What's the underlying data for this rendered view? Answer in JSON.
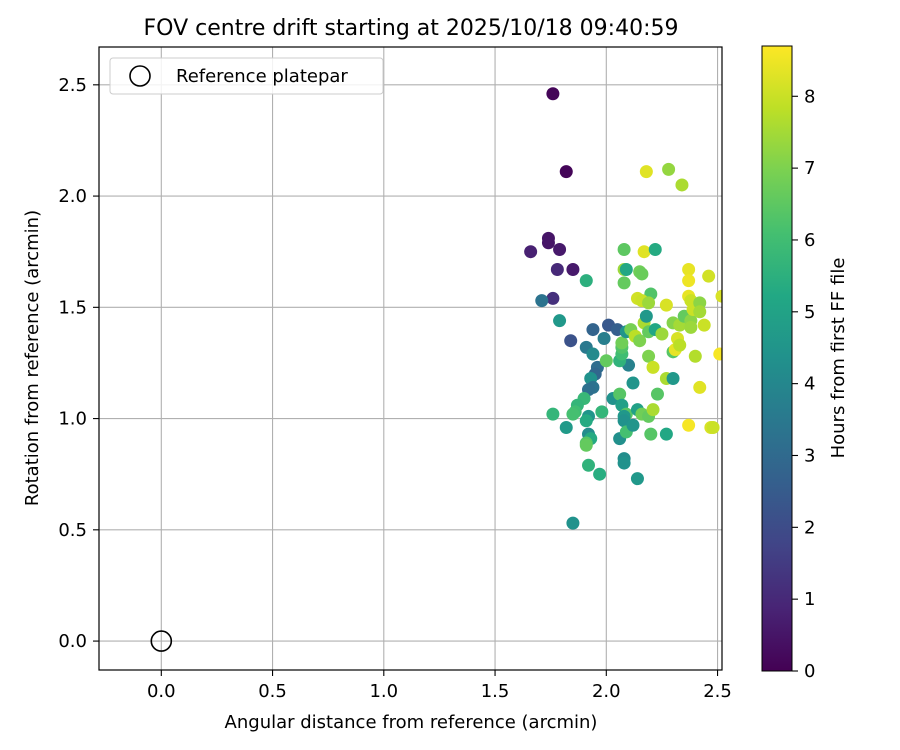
{
  "chart_data": {
    "type": "scatter",
    "title": "FOV centre drift starting at 2025/10/18 09:40:59",
    "xlabel": "Angular distance from reference (arcmin)",
    "ylabel": "Rotation from reference (arcmin)",
    "xlim": [
      -0.28,
      2.52
    ],
    "ylim": [
      -0.13,
      2.67
    ],
    "xticks": [
      0.0,
      0.5,
      1.0,
      1.5,
      2.0,
      2.5
    ],
    "xtick_labels": [
      "0.0",
      "0.5",
      "1.0",
      "1.5",
      "2.0",
      "2.5"
    ],
    "yticks": [
      0.0,
      0.5,
      1.0,
      1.5,
      2.0,
      2.5
    ],
    "ytick_labels": [
      "0.0",
      "0.5",
      "1.0",
      "1.5",
      "2.0",
      "2.5"
    ],
    "grid": true,
    "legend": {
      "position": "top-left",
      "entries": [
        "Reference platepar"
      ]
    },
    "reference_point": {
      "x": 0.0,
      "y": 0.0,
      "label": "Reference platepar"
    },
    "colorbar": {
      "label": "Hours from first FF file",
      "colormap": "viridis",
      "range": [
        0,
        8.7
      ],
      "ticks": [
        0,
        1,
        2,
        3,
        4,
        5,
        6,
        7,
        8
      ],
      "tick_labels": [
        "0",
        "1",
        "2",
        "3",
        "4",
        "5",
        "6",
        "7",
        "8"
      ]
    },
    "series": [
      {
        "name": "FOV centre",
        "points": [
          {
            "x": 1.76,
            "y": 2.46,
            "h": 0.1
          },
          {
            "x": 1.82,
            "y": 2.11,
            "h": 0.1
          },
          {
            "x": 1.66,
            "y": 1.75,
            "h": 0.8
          },
          {
            "x": 1.74,
            "y": 1.81,
            "h": 0.5
          },
          {
            "x": 1.74,
            "y": 1.79,
            "h": 0.5
          },
          {
            "x": 1.79,
            "y": 1.76,
            "h": 0.6
          },
          {
            "x": 1.78,
            "y": 1.67,
            "h": 1.0
          },
          {
            "x": 1.85,
            "y": 1.67,
            "h": 0.6
          },
          {
            "x": 1.76,
            "y": 1.54,
            "h": 1.2
          },
          {
            "x": 1.71,
            "y": 1.53,
            "h": 3.3
          },
          {
            "x": 1.79,
            "y": 1.44,
            "h": 4.6
          },
          {
            "x": 1.84,
            "y": 1.35,
            "h": 2.2
          },
          {
            "x": 1.91,
            "y": 1.62,
            "h": 5.5
          },
          {
            "x": 1.94,
            "y": 1.4,
            "h": 2.8
          },
          {
            "x": 1.99,
            "y": 1.36,
            "h": 3.7
          },
          {
            "x": 2.01,
            "y": 1.42,
            "h": 2.4
          },
          {
            "x": 2.05,
            "y": 1.4,
            "h": 2.6
          },
          {
            "x": 1.91,
            "y": 1.32,
            "h": 3.5
          },
          {
            "x": 1.94,
            "y": 1.29,
            "h": 4.1
          },
          {
            "x": 1.96,
            "y": 1.23,
            "h": 3.1
          },
          {
            "x": 1.95,
            "y": 1.2,
            "h": 2.9
          },
          {
            "x": 1.93,
            "y": 1.18,
            "h": 4.4
          },
          {
            "x": 1.94,
            "y": 1.14,
            "h": 3.3
          },
          {
            "x": 1.92,
            "y": 1.13,
            "h": 3.2
          },
          {
            "x": 1.9,
            "y": 1.09,
            "h": 5.8
          },
          {
            "x": 1.87,
            "y": 1.06,
            "h": 5.7
          },
          {
            "x": 1.86,
            "y": 1.03,
            "h": 6.0
          },
          {
            "x": 1.92,
            "y": 1.01,
            "h": 4.5
          },
          {
            "x": 1.91,
            "y": 0.99,
            "h": 5.3
          },
          {
            "x": 1.85,
            "y": 1.02,
            "h": 6.1
          },
          {
            "x": 1.76,
            "y": 1.02,
            "h": 5.7
          },
          {
            "x": 1.82,
            "y": 0.96,
            "h": 4.7
          },
          {
            "x": 1.92,
            "y": 0.93,
            "h": 4.2
          },
          {
            "x": 1.93,
            "y": 0.91,
            "h": 5.3
          },
          {
            "x": 1.91,
            "y": 0.89,
            "h": 6.4
          },
          {
            "x": 1.91,
            "y": 0.88,
            "h": 6.6
          },
          {
            "x": 1.92,
            "y": 0.79,
            "h": 5.6
          },
          {
            "x": 1.97,
            "y": 0.75,
            "h": 5.4
          },
          {
            "x": 1.85,
            "y": 0.53,
            "h": 4.4
          },
          {
            "x": 2.0,
            "y": 1.26,
            "h": 6.6
          },
          {
            "x": 2.03,
            "y": 1.09,
            "h": 4.4
          },
          {
            "x": 1.98,
            "y": 1.03,
            "h": 5.7
          },
          {
            "x": 2.06,
            "y": 1.11,
            "h": 6.4
          },
          {
            "x": 2.07,
            "y": 1.06,
            "h": 4.9
          },
          {
            "x": 2.09,
            "y": 1.02,
            "h": 6.4
          },
          {
            "x": 2.08,
            "y": 1.01,
            "h": 4.6
          },
          {
            "x": 2.08,
            "y": 0.99,
            "h": 4.4
          },
          {
            "x": 2.06,
            "y": 0.91,
            "h": 4.3
          },
          {
            "x": 2.09,
            "y": 0.94,
            "h": 6.1
          },
          {
            "x": 2.12,
            "y": 0.97,
            "h": 4.5
          },
          {
            "x": 2.08,
            "y": 0.82,
            "h": 4.2
          },
          {
            "x": 2.08,
            "y": 0.8,
            "h": 4.4
          },
          {
            "x": 2.14,
            "y": 0.73,
            "h": 4.6
          },
          {
            "x": 2.12,
            "y": 1.16,
            "h": 4.5
          },
          {
            "x": 2.1,
            "y": 1.24,
            "h": 3.8
          },
          {
            "x": 2.06,
            "y": 1.26,
            "h": 5.6
          },
          {
            "x": 2.07,
            "y": 1.29,
            "h": 6.0
          },
          {
            "x": 2.07,
            "y": 1.32,
            "h": 6.3
          },
          {
            "x": 2.07,
            "y": 1.34,
            "h": 6.8
          },
          {
            "x": 2.09,
            "y": 1.39,
            "h": 4.5
          },
          {
            "x": 2.11,
            "y": 1.4,
            "h": 6.9
          },
          {
            "x": 2.13,
            "y": 1.37,
            "h": 7.8
          },
          {
            "x": 2.15,
            "y": 1.35,
            "h": 7.0
          },
          {
            "x": 2.17,
            "y": 1.43,
            "h": 7.6
          },
          {
            "x": 2.18,
            "y": 1.46,
            "h": 4.6
          },
          {
            "x": 2.19,
            "y": 1.39,
            "h": 6.6
          },
          {
            "x": 2.22,
            "y": 1.4,
            "h": 5.2
          },
          {
            "x": 2.19,
            "y": 1.28,
            "h": 7.0
          },
          {
            "x": 2.21,
            "y": 1.23,
            "h": 8.0
          },
          {
            "x": 2.14,
            "y": 1.04,
            "h": 4.9
          },
          {
            "x": 2.16,
            "y": 1.02,
            "h": 6.8
          },
          {
            "x": 2.19,
            "y": 1.01,
            "h": 6.6
          },
          {
            "x": 2.21,
            "y": 1.04,
            "h": 7.6
          },
          {
            "x": 2.23,
            "y": 1.11,
            "h": 6.4
          },
          {
            "x": 2.2,
            "y": 0.93,
            "h": 6.4
          },
          {
            "x": 2.27,
            "y": 0.93,
            "h": 5.2
          },
          {
            "x": 2.08,
            "y": 1.76,
            "h": 6.5
          },
          {
            "x": 2.08,
            "y": 1.67,
            "h": 7.4
          },
          {
            "x": 2.08,
            "y": 1.61,
            "h": 6.6
          },
          {
            "x": 2.09,
            "y": 1.67,
            "h": 5.2
          },
          {
            "x": 2.15,
            "y": 1.66,
            "h": 6.8
          },
          {
            "x": 2.16,
            "y": 1.65,
            "h": 6.7
          },
          {
            "x": 2.17,
            "y": 1.75,
            "h": 8.3
          },
          {
            "x": 2.22,
            "y": 1.76,
            "h": 5.3
          },
          {
            "x": 2.2,
            "y": 1.56,
            "h": 6.3
          },
          {
            "x": 2.14,
            "y": 1.54,
            "h": 8.1
          },
          {
            "x": 2.16,
            "y": 1.53,
            "h": 8.0
          },
          {
            "x": 2.19,
            "y": 1.52,
            "h": 7.4
          },
          {
            "x": 2.25,
            "y": 1.38,
            "h": 7.4
          },
          {
            "x": 2.27,
            "y": 1.51,
            "h": 8.2
          },
          {
            "x": 2.27,
            "y": 1.18,
            "h": 7.6
          },
          {
            "x": 2.3,
            "y": 1.18,
            "h": 4.6
          },
          {
            "x": 2.3,
            "y": 1.3,
            "h": 6.4
          },
          {
            "x": 2.31,
            "y": 1.31,
            "h": 8.4
          },
          {
            "x": 2.3,
            "y": 1.43,
            "h": 7.1
          },
          {
            "x": 2.32,
            "y": 1.36,
            "h": 8.2
          },
          {
            "x": 2.33,
            "y": 1.42,
            "h": 7.5
          },
          {
            "x": 2.33,
            "y": 1.33,
            "h": 7.8
          },
          {
            "x": 2.35,
            "y": 1.46,
            "h": 6.6
          },
          {
            "x": 2.37,
            "y": 1.67,
            "h": 8.4
          },
          {
            "x": 2.37,
            "y": 1.62,
            "h": 8.5
          },
          {
            "x": 2.37,
            "y": 1.55,
            "h": 8.4
          },
          {
            "x": 2.38,
            "y": 1.53,
            "h": 8.0
          },
          {
            "x": 2.38,
            "y": 1.44,
            "h": 7.2
          },
          {
            "x": 2.39,
            "y": 1.49,
            "h": 8.0
          },
          {
            "x": 2.38,
            "y": 1.41,
            "h": 7.4
          },
          {
            "x": 2.4,
            "y": 1.28,
            "h": 7.7
          },
          {
            "x": 2.42,
            "y": 1.52,
            "h": 7.2
          },
          {
            "x": 2.42,
            "y": 1.48,
            "h": 7.5
          },
          {
            "x": 2.44,
            "y": 1.42,
            "h": 8.0
          },
          {
            "x": 2.42,
            "y": 1.14,
            "h": 8.3
          },
          {
            "x": 2.37,
            "y": 0.97,
            "h": 8.6
          },
          {
            "x": 2.47,
            "y": 0.96,
            "h": 8.2
          },
          {
            "x": 2.48,
            "y": 0.96,
            "h": 8.0
          },
          {
            "x": 2.46,
            "y": 1.64,
            "h": 8.1
          },
          {
            "x": 2.51,
            "y": 1.29,
            "h": 8.6
          },
          {
            "x": 2.52,
            "y": 1.55,
            "h": 8.2
          },
          {
            "x": 2.18,
            "y": 2.11,
            "h": 8.3
          },
          {
            "x": 2.28,
            "y": 2.12,
            "h": 7.3
          },
          {
            "x": 2.34,
            "y": 2.05,
            "h": 7.6
          }
        ]
      }
    ]
  }
}
